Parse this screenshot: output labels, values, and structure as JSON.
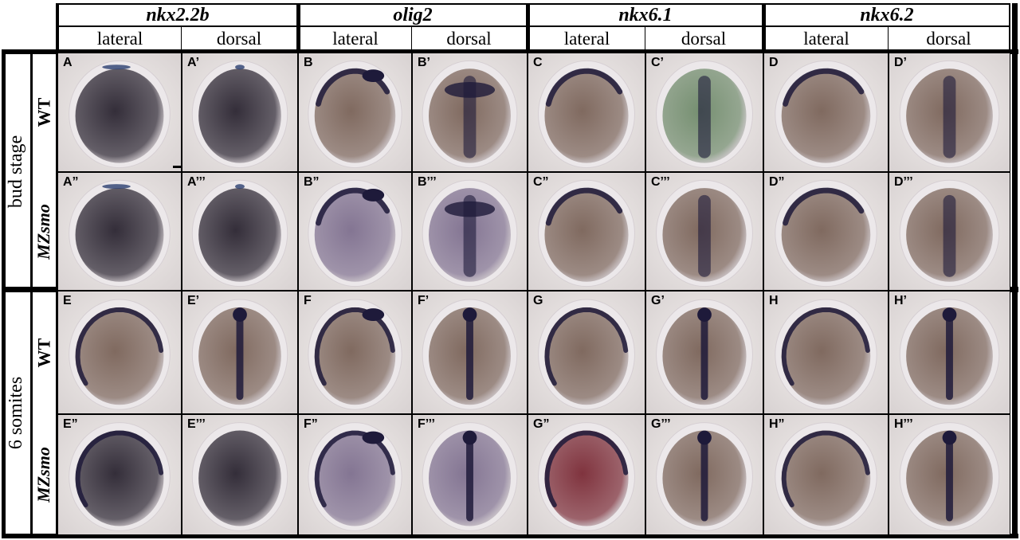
{
  "genes": [
    "nkx2.2b",
    "olig2",
    "nkx6.1",
    "nkx6.2"
  ],
  "views": [
    "lateral",
    "dorsal",
    "lateral",
    "dorsal",
    "lateral",
    "dorsal",
    "lateral",
    "dorsal"
  ],
  "stages": [
    {
      "label": "bud stage",
      "genotypes": [
        "WT",
        "MZsmo"
      ]
    },
    {
      "label": "6 somites",
      "genotypes": [
        "WT",
        "MZsmo"
      ]
    }
  ],
  "panel_labels": [
    [
      "A",
      "A’",
      "B",
      "B’",
      "C",
      "C’",
      "D",
      "D’"
    ],
    [
      "A”",
      "A’’’",
      "B”",
      "B’’’",
      "C”",
      "C’’’",
      "D”",
      "D’’’"
    ],
    [
      "E",
      "E’",
      "F",
      "F’",
      "G",
      "G’",
      "H",
      "H’"
    ],
    [
      "E”",
      "E’’’",
      "F”",
      "F’’’",
      "G”",
      "G’’’",
      "H”",
      "H’’’"
    ]
  ],
  "colors": {
    "stain_dark": "#1e1a3a",
    "embryo_brown": "#7a6358",
    "embryo_purple": "#7e6f8e",
    "embryo_dark": "#2a2430",
    "green_tint": "#6f8a6a",
    "red_tint": "#7a2a35"
  }
}
